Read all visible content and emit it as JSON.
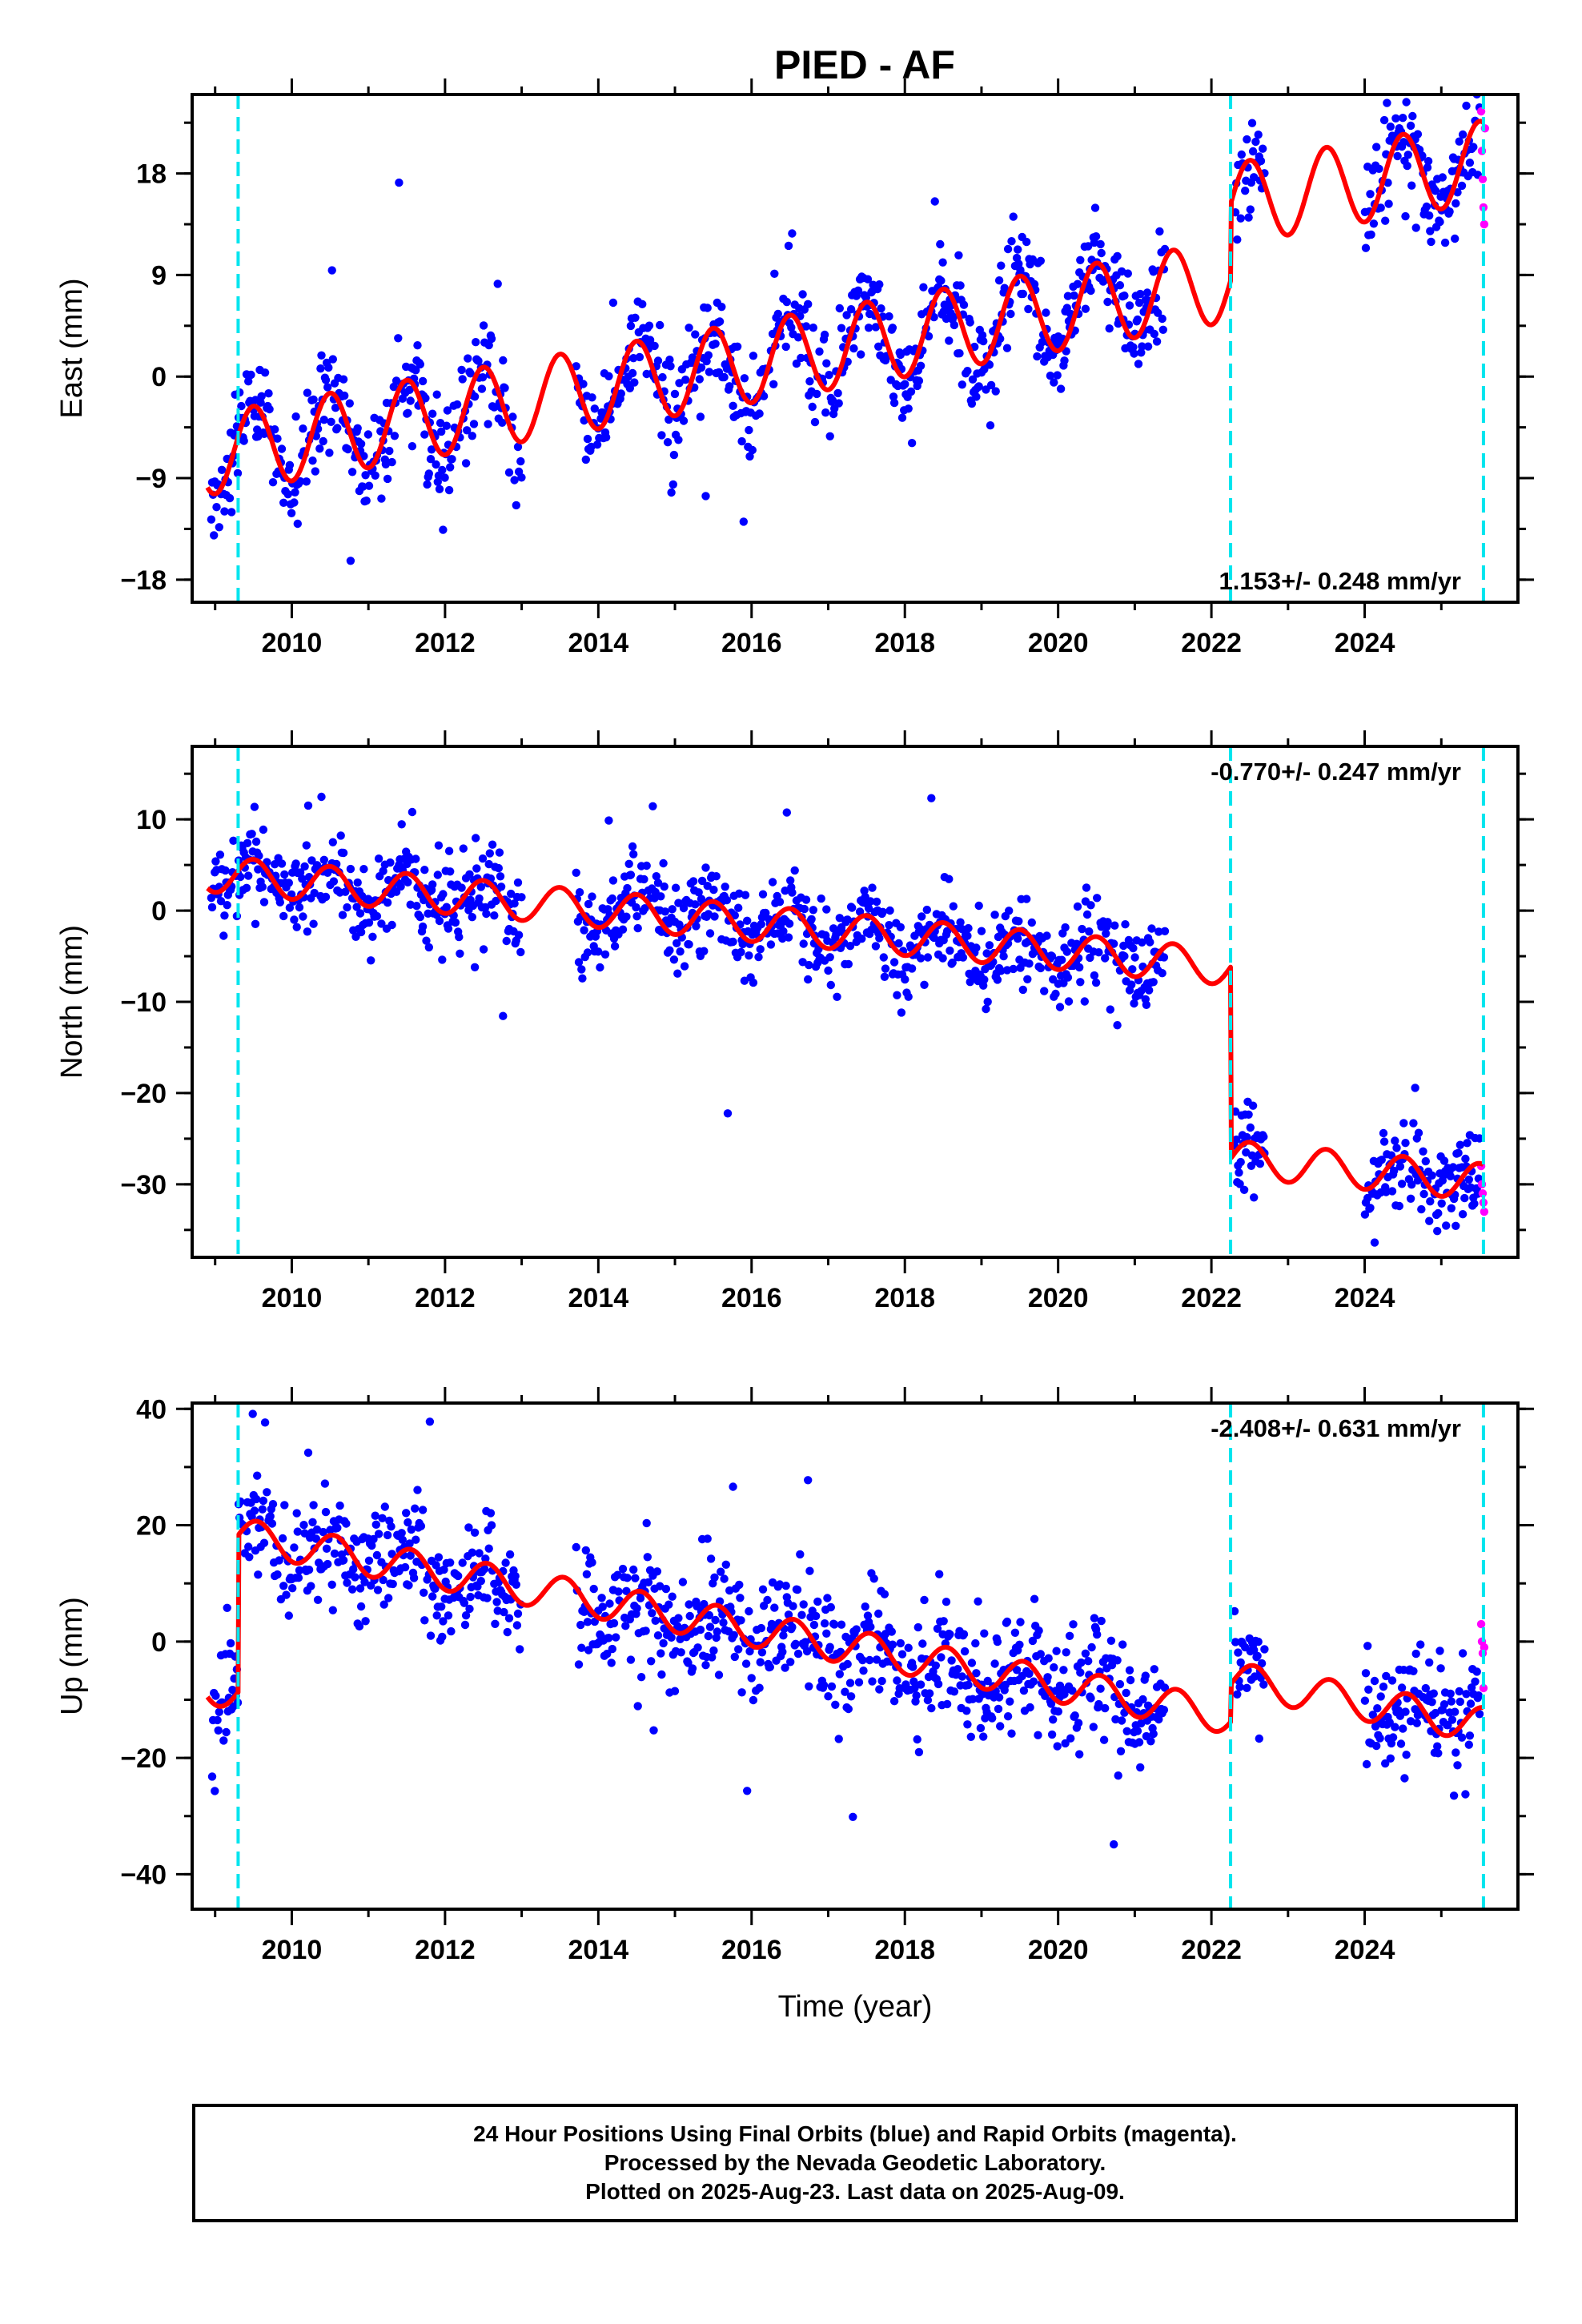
{
  "title": "PIED - AF",
  "footer": {
    "line1": "24 Hour Positions Using Final Orbits (blue) and Rapid Orbits (magenta).",
    "line2": "Processed by the Nevada Geodetic Laboratory.",
    "line3": "Plotted on 2025-Aug-23. Last data on 2025-Aug-09."
  },
  "colors": {
    "final_orbits": "#0000ff",
    "rapid_orbits": "#ff00ff",
    "model": "#ff0000",
    "events": "#00e5ee"
  },
  "chart_data": [
    {
      "type": "scatter",
      "ylabel": "East (mm)",
      "xlabel": "",
      "xlim": [
        2008.7,
        2026.0
      ],
      "ylim": [
        -20,
        25
      ],
      "yticks": [
        -18,
        -9,
        0,
        9,
        18
      ],
      "xticks": [
        2010,
        2012,
        2014,
        2016,
        2018,
        2020,
        2022,
        2024
      ],
      "annotation": "1.153+/- 0.248 mm/yr",
      "annotation_position": "bottom-right",
      "event_lines": [
        2009.3,
        2022.25,
        2025.55
      ],
      "model": {
        "rate": 1.153,
        "amplitude": 3.6,
        "phase_peak": 0.5,
        "epoch": 2009.0,
        "offset": -6.8,
        "steps": [
          {
            "x": 2022.25,
            "dy": 6.8
          }
        ],
        "x_range": [
          2008.9,
          2025.55
        ]
      },
      "scatter_gaps": [
        [
          2013.0,
          2013.7
        ],
        [
          2021.4,
          2022.3
        ],
        [
          2022.7,
          2024.0
        ]
      ],
      "scatter_noise": 2.3,
      "rapid_points": {
        "x": [
          2025.52,
          2025.53,
          2025.54,
          2025.55,
          2025.56,
          2025.57
        ],
        "y": [
          23.5,
          20,
          17.5,
          15,
          13.5,
          22
        ]
      }
    },
    {
      "type": "scatter",
      "ylabel": "North (mm)",
      "xlabel": "",
      "xlim": [
        2008.7,
        2026.0
      ],
      "ylim": [
        -38,
        18
      ],
      "yticks": [
        -30,
        -20,
        -10,
        0,
        10
      ],
      "xticks": [
        2010,
        2012,
        2014,
        2016,
        2018,
        2020,
        2022,
        2024
      ],
      "annotation": "-0.770+/- 0.247 mm/yr",
      "annotation_position": "top-right",
      "event_lines": [
        2009.3,
        2022.25,
        2025.55
      ],
      "model": {
        "rate": -0.77,
        "amplitude": 2.0,
        "phase_peak": 0.5,
        "epoch": 2009.0,
        "offset": 4.0,
        "steps": [
          {
            "x": 2022.25,
            "dy": -21.0
          }
        ],
        "x_range": [
          2008.9,
          2025.55
        ]
      },
      "scatter_gaps": [
        [
          2013.0,
          2013.7
        ],
        [
          2021.4,
          2022.3
        ],
        [
          2022.7,
          2024.0
        ]
      ],
      "scatter_noise": 2.4,
      "rapid_points": {
        "x": [
          2025.52,
          2025.53,
          2025.54,
          2025.55,
          2025.56
        ],
        "y": [
          -28,
          -30,
          -31,
          -32,
          -33
        ]
      }
    },
    {
      "type": "scatter",
      "ylabel": "Up (mm)",
      "xlabel": "Time (year)",
      "xlim": [
        2008.7,
        2026.0
      ],
      "ylim": [
        -46,
        41
      ],
      "yticks": [
        -40,
        -20,
        0,
        20,
        40
      ],
      "xticks": [
        2010,
        2012,
        2014,
        2016,
        2018,
        2020,
        2022,
        2024
      ],
      "annotation": "-2.408+/- 0.631 mm/yr",
      "annotation_position": "top-right",
      "event_lines": [
        2009.3,
        2022.25,
        2025.55
      ],
      "model": {
        "rate": -2.408,
        "amplitude": 3.0,
        "phase_peak": 0.55,
        "epoch": 2009.0,
        "offset": -8.0,
        "steps": [
          {
            "x": 2009.3,
            "dy": 27.0
          },
          {
            "x": 2022.25,
            "dy": 6.5
          }
        ],
        "x_range": [
          2008.9,
          2025.55
        ]
      },
      "scatter_gaps": [
        [
          2013.0,
          2013.7
        ],
        [
          2021.4,
          2022.3
        ],
        [
          2022.7,
          2024.0
        ]
      ],
      "scatter_noise": 5.0,
      "rapid_points": {
        "x": [
          2025.52,
          2025.53,
          2025.54,
          2025.55,
          2025.56
        ],
        "y": [
          3,
          0,
          -2,
          -8,
          -1
        ]
      }
    }
  ]
}
